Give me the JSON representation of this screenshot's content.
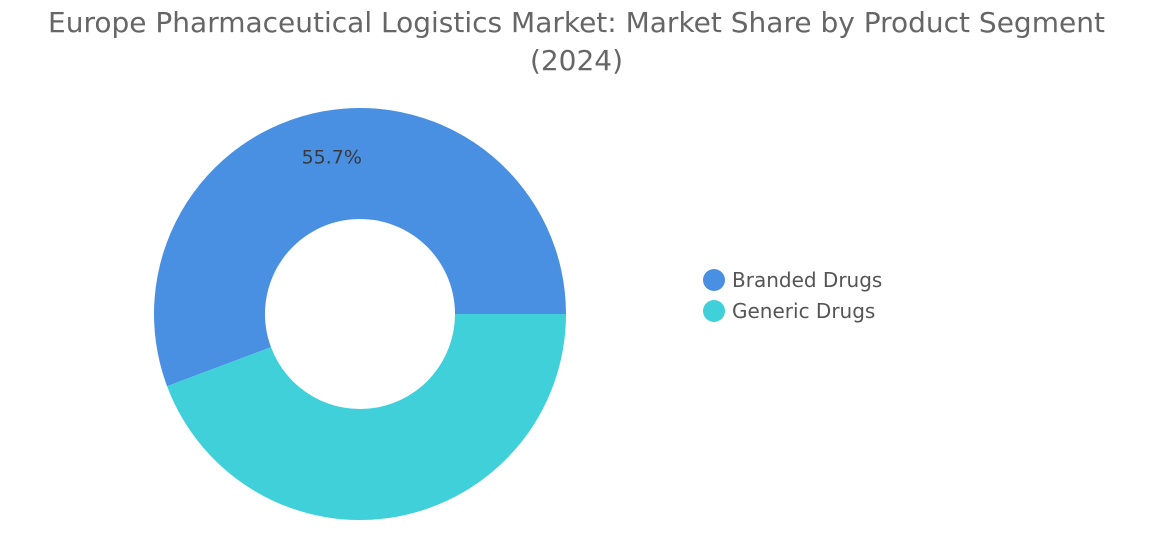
{
  "chart_data": {
    "type": "pie",
    "variant": "donut",
    "title": "Europe Pharmaceutical Logistics Market: Market Share by Product Segment",
    "subtitle": "(2024)",
    "categories": [
      "Branded Drugs",
      "Generic Drugs"
    ],
    "values": [
      55.7,
      44.3
    ],
    "colors": [
      "#4A90E2",
      "#3FD0DA"
    ],
    "data_labels": [
      "55.7%",
      ""
    ],
    "legend_position": "right",
    "grid": false
  }
}
